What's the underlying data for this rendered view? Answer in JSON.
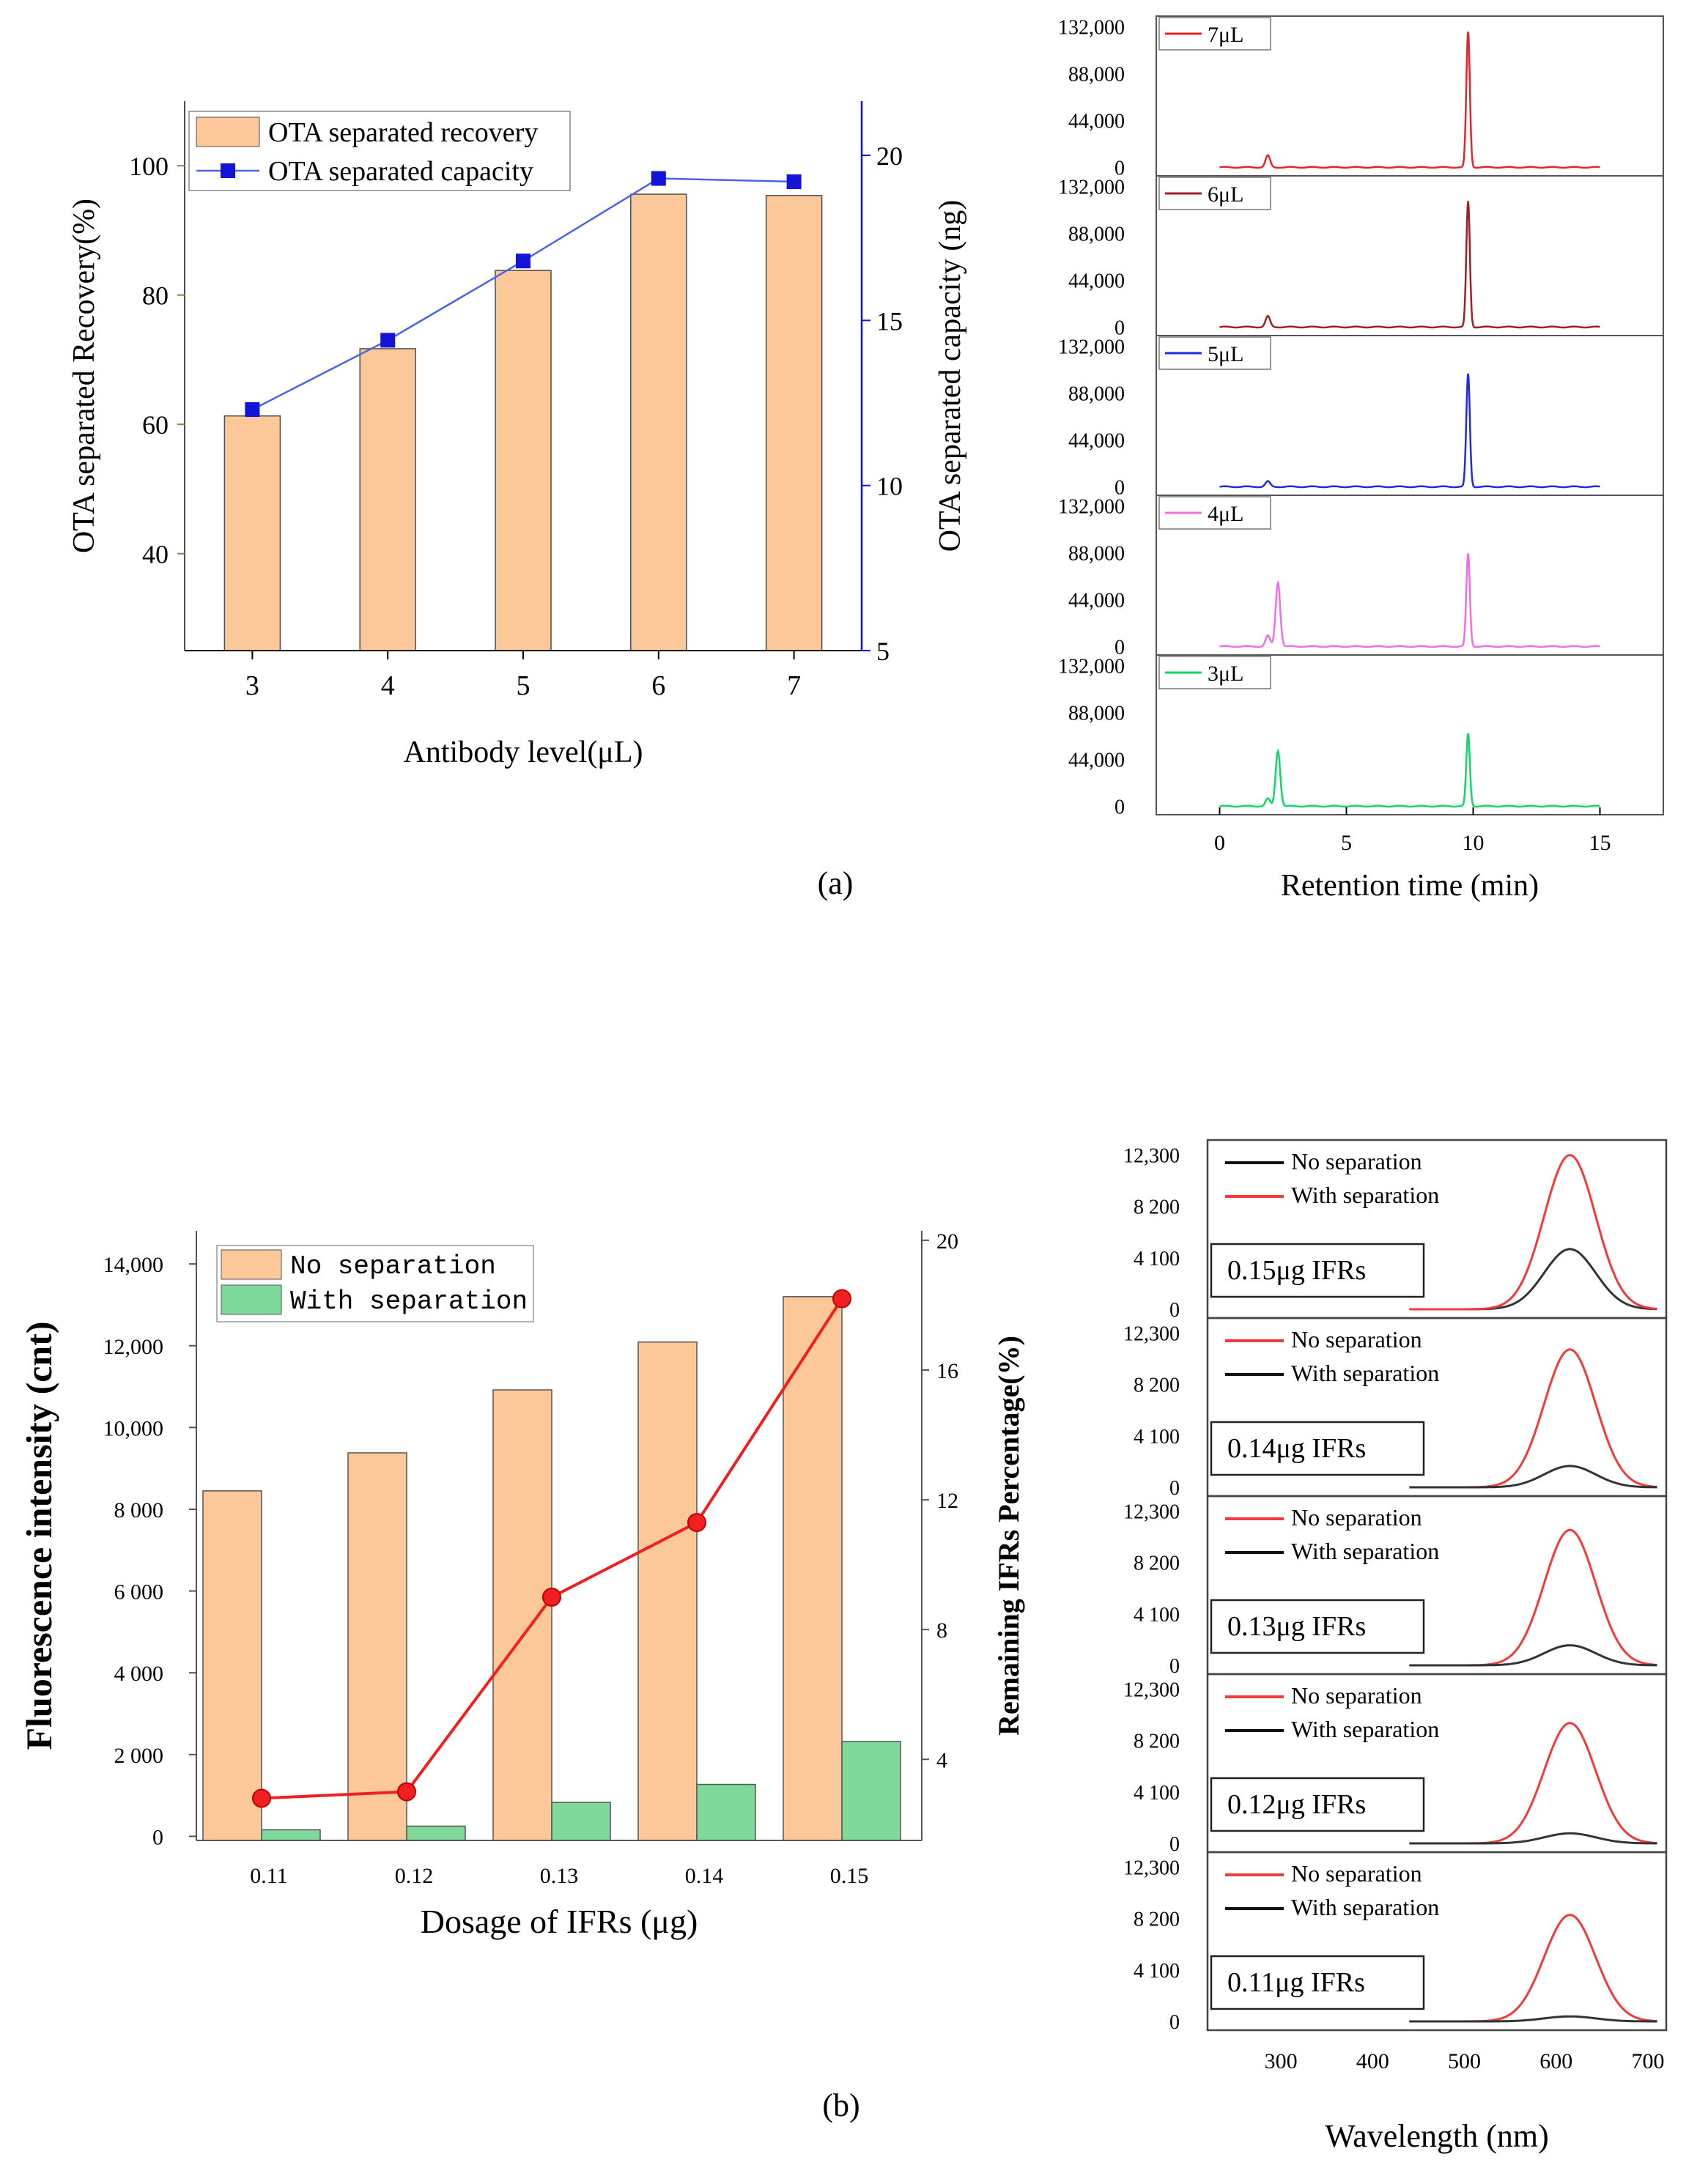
{
  "colors": {
    "recovery_bar": "#FCC89A",
    "recovery_bar_edge": "#4d4d4d",
    "capacity_line": "#4A63E8",
    "capacity_marker": "#1414D8",
    "right_axis_blue": "#1010E0",
    "left_axis_tan": "#A07850",
    "no_sep_bar": "#FCC89A",
    "with_sep_bar": "#7ED99A",
    "remaining_line": "#F02020",
    "hplc_7": "#E8232B",
    "hplc_6": "#A11E23",
    "hplc_5": "#1F2BDE",
    "hplc_4": "#F06EE8",
    "hplc_3": "#12D665",
    "fl_black": "#333333",
    "fl_red": "#F23A3A",
    "fl_red_text": "#F01010",
    "fl_blue_text": "#1A1AE6"
  },
  "captions": {
    "a": "(a)",
    "b": "(b)"
  },
  "chart_data": [
    {
      "id": "a-left",
      "type": "bar",
      "xlabel": "Antibody level(μL)",
      "ylabel": "OTA separated Recovery(%)",
      "y2label": "OTA separated capacity (ng)",
      "categories": [
        "3",
        "4",
        "5",
        "6",
        "7"
      ],
      "ylim": [
        25,
        110
      ],
      "yticks": [
        "40",
        "60",
        "80",
        "100"
      ],
      "y2lim": [
        5,
        20
      ],
      "y2ticks": [
        "5",
        "10",
        "15",
        "20"
      ],
      "legend": "top-left",
      "series": [
        {
          "name": "OTA separated recovery",
          "kind": "bar",
          "axis": "left",
          "values": [
            61.3,
            71.7,
            83.8,
            95.6,
            95.4
          ]
        },
        {
          "name": "OTA separated capacity",
          "kind": "line",
          "axis": "right",
          "values": [
            12.3,
            14.4,
            16.8,
            19.3,
            19.2
          ]
        }
      ]
    },
    {
      "id": "a-right",
      "type": "line",
      "xlabel": "Retention time (min)",
      "xlim": [
        -2.5,
        17.5
      ],
      "xticks": [
        "0",
        "5",
        "10",
        "15"
      ],
      "ylim": [
        -8000,
        142000
      ],
      "yticks": [
        "0",
        "44,000",
        "88,000",
        "132,000"
      ],
      "panels": [
        {
          "name": "7μL",
          "color_key": "hplc_7",
          "peaks": [
            [
              1.9,
              11000
            ],
            [
              9.8,
              127000
            ]
          ]
        },
        {
          "name": "6μL",
          "color_key": "hplc_6",
          "peaks": [
            [
              1.9,
              10000
            ],
            [
              9.8,
              118000
            ]
          ]
        },
        {
          "name": "5μL",
          "color_key": "hplc_5",
          "peaks": [
            [
              1.9,
              5000
            ],
            [
              9.8,
              106000
            ]
          ]
        },
        {
          "name": "4μL",
          "color_key": "hplc_4",
          "peaks": [
            [
              1.9,
              10000
            ],
            [
              2.3,
              60000
            ],
            [
              9.8,
              87000
            ]
          ]
        },
        {
          "name": "3μL",
          "color_key": "hplc_3",
          "peaks": [
            [
              1.9,
              7000
            ],
            [
              2.3,
              52000
            ],
            [
              9.8,
              68000
            ]
          ]
        }
      ]
    },
    {
      "id": "b-left",
      "type": "bar",
      "xlabel": "Dosage of  IFRs (μg)",
      "ylabel": "Fluorescence intensity (cnt)",
      "y2label": "Remaining  IFRs Percentage(%)",
      "categories": [
        "0.11",
        "0.12",
        "0.13",
        "0.14",
        "0.15"
      ],
      "ylim": [
        -100,
        14200
      ],
      "yticks": [
        "0",
        "2 000",
        "4 000",
        "6 000",
        "8 000",
        "10,000",
        "12,000",
        "14,000"
      ],
      "y2lim": [
        1.5,
        20.2
      ],
      "y2ticks": [
        "4",
        "8",
        "12",
        "16",
        "20"
      ],
      "legend": "top-left",
      "series": [
        {
          "name": "No separation",
          "kind": "bar",
          "axis": "left",
          "values": [
            8450,
            9380,
            10920,
            12090,
            13200
          ]
        },
        {
          "name": "With separation",
          "kind": "bar",
          "axis": "left",
          "values": [
            160,
            250,
            830,
            1270,
            2320
          ]
        },
        {
          "name": "",
          "kind": "line",
          "axis": "right",
          "values": [
            2.8,
            3.0,
            9.0,
            11.3,
            18.2
          ]
        }
      ]
    },
    {
      "id": "b-right",
      "type": "line",
      "xlabel": "Wavelength (nm)",
      "xlim": [
        220,
        720
      ],
      "xticks": [
        "300",
        "400",
        "500",
        "600",
        "700"
      ],
      "ylim": [
        -700,
        13500
      ],
      "yticks": [
        "0",
        "4 100",
        "8 200",
        "12,300"
      ],
      "panels": [
        {
          "label": "0.15μg  IFRs",
          "no_sep": 4800,
          "with_sep": 12300,
          "legend": [
            [
              "No separation",
              "black"
            ],
            [
              "With separation",
              "red"
            ]
          ],
          "no_sep_color": "black"
        },
        {
          "label": "0.14μg  IFRs",
          "no_sep": 11000,
          "with_sep": 1700,
          "legend": [
            [
              "No separation",
              "red"
            ],
            [
              "With separation",
              "black"
            ]
          ],
          "no_sep_color": "red"
        },
        {
          "label": "0.13μg  IFRs",
          "no_sep": 10800,
          "with_sep": 1600,
          "legend": [
            [
              "No separation",
              "red"
            ],
            [
              "With separation",
              "black"
            ]
          ],
          "no_sep_color": "red"
        },
        {
          "label": "0.12μg  IFRs",
          "no_sep": 9600,
          "with_sep": 800,
          "legend": [
            [
              "No separation",
              "red"
            ],
            [
              "With separation",
              "black"
            ]
          ],
          "no_sep_color": "red"
        },
        {
          "label": "0.11μg  IFRs",
          "no_sep": 8500,
          "with_sep": 400,
          "legend": [
            [
              "No separation",
              "red"
            ],
            [
              "With separation",
              "black"
            ]
          ],
          "no_sep_color": "red"
        }
      ]
    }
  ]
}
